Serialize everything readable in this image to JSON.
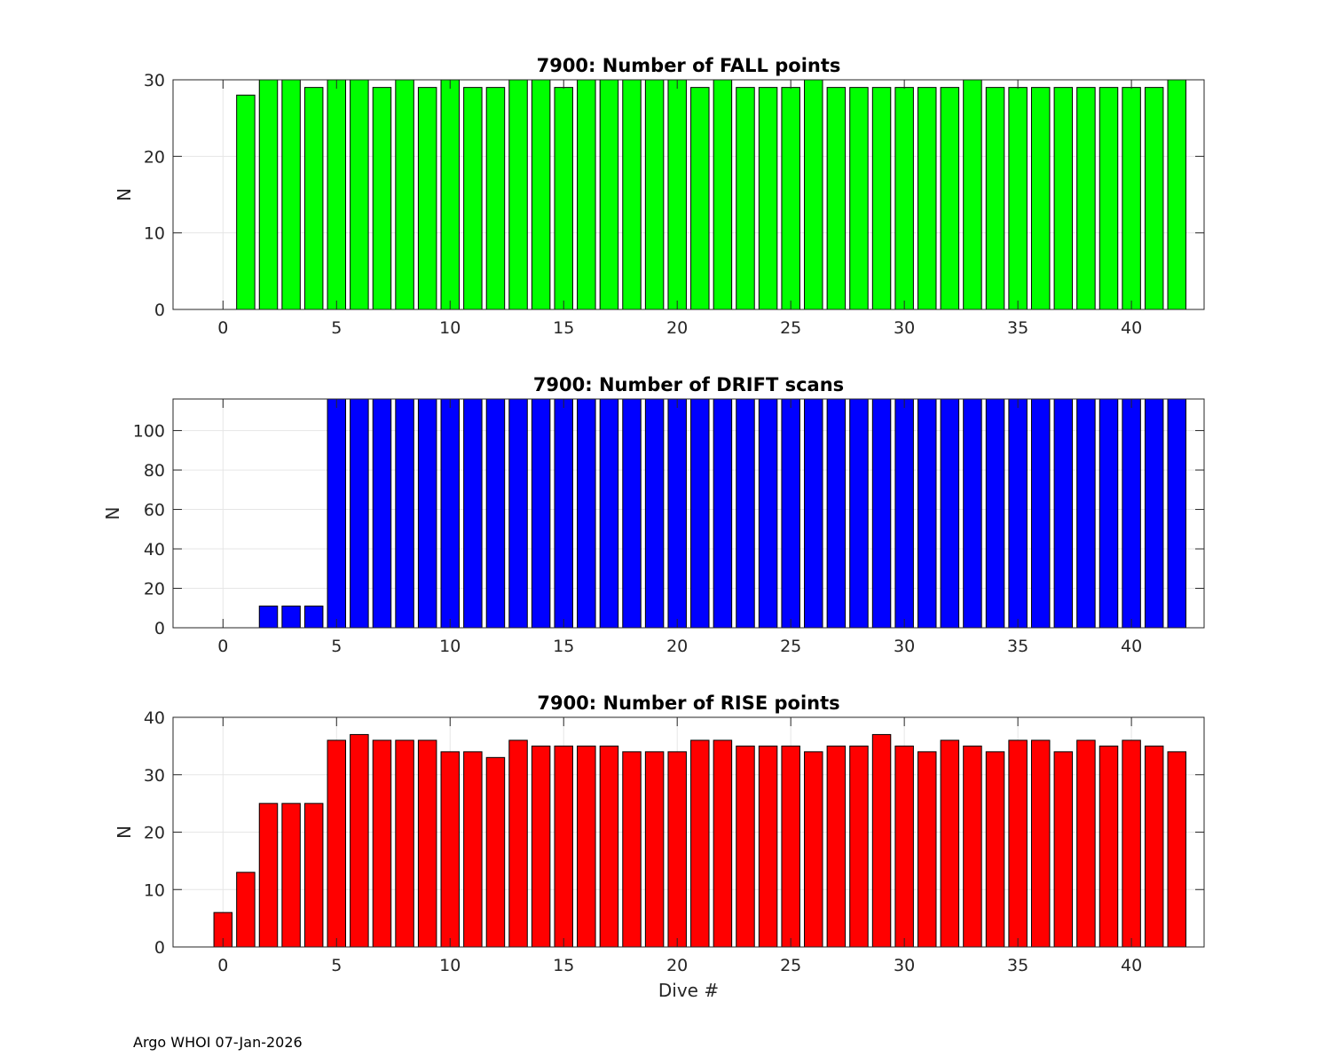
{
  "footer": "Argo WHOI 07-Jan-2026",
  "chart_data": [
    {
      "type": "bar",
      "title": "7900: Number of FALL points",
      "xlabel": "",
      "ylabel": "N",
      "xlim": [
        -2.2,
        43.2
      ],
      "ylim": [
        0,
        30
      ],
      "xticks": [
        0,
        5,
        10,
        15,
        20,
        25,
        30,
        35,
        40
      ],
      "yticks": [
        0,
        10,
        20,
        30
      ],
      "grid": true,
      "bar_color": "#00ff00",
      "x": [
        1,
        2,
        3,
        4,
        5,
        6,
        7,
        8,
        9,
        10,
        11,
        12,
        13,
        14,
        15,
        16,
        17,
        18,
        19,
        20,
        21,
        22,
        23,
        24,
        25,
        26,
        27,
        28,
        29,
        30,
        31,
        32,
        33,
        34,
        35,
        36,
        37,
        38,
        39,
        40,
        41,
        42
      ],
      "values": [
        28,
        30,
        30,
        29,
        30,
        30,
        29,
        30,
        29,
        30,
        29,
        29,
        30,
        30,
        29,
        30,
        30,
        30,
        30,
        30,
        29,
        30,
        29,
        29,
        29,
        30,
        29,
        29,
        29,
        29,
        29,
        29,
        30,
        29,
        29,
        29,
        29,
        29,
        29,
        29,
        29,
        30
      ]
    },
    {
      "type": "bar",
      "title": "7900: Number of DRIFT scans",
      "xlabel": "",
      "ylabel": "N",
      "xlim": [
        -2.2,
        43.2
      ],
      "ylim": [
        0,
        116
      ],
      "xticks": [
        0,
        5,
        10,
        15,
        20,
        25,
        30,
        35,
        40
      ],
      "yticks": [
        0,
        20,
        40,
        60,
        80,
        100
      ],
      "grid": true,
      "bar_color": "#0000ff",
      "x": [
        -1,
        0,
        1,
        2,
        3,
        4,
        5,
        6,
        7,
        8,
        9,
        10,
        11,
        12,
        13,
        14,
        15,
        16,
        17,
        18,
        19,
        20,
        21,
        22,
        23,
        24,
        25,
        26,
        27,
        28,
        29,
        30,
        31,
        32,
        33,
        34,
        35,
        36,
        37,
        38,
        39,
        40,
        41,
        42
      ],
      "values": [
        0,
        0,
        0,
        11,
        11,
        11,
        120,
        120,
        120,
        120,
        120,
        120,
        120,
        120,
        120,
        120,
        120,
        120,
        120,
        120,
        120,
        120,
        120,
        120,
        120,
        120,
        120,
        120,
        120,
        120,
        120,
        120,
        120,
        120,
        120,
        120,
        120,
        120,
        120,
        120,
        120,
        120,
        120,
        120
      ]
    },
    {
      "type": "bar",
      "title": "7900: Number of RISE points",
      "xlabel": "Dive #",
      "ylabel": "N",
      "xlim": [
        -2.2,
        43.2
      ],
      "ylim": [
        0,
        40
      ],
      "xticks": [
        0,
        5,
        10,
        15,
        20,
        25,
        30,
        35,
        40
      ],
      "yticks": [
        0,
        10,
        20,
        30,
        40
      ],
      "grid": true,
      "bar_color": "#ff0000",
      "x": [
        0,
        1,
        2,
        3,
        4,
        5,
        6,
        7,
        8,
        9,
        10,
        11,
        12,
        13,
        14,
        15,
        16,
        17,
        18,
        19,
        20,
        21,
        22,
        23,
        24,
        25,
        26,
        27,
        28,
        29,
        30,
        31,
        32,
        33,
        34,
        35,
        36,
        37,
        38,
        39,
        40,
        41,
        42
      ],
      "values": [
        6,
        13,
        25,
        25,
        25,
        36,
        37,
        36,
        36,
        36,
        34,
        34,
        33,
        36,
        35,
        35,
        35,
        35,
        34,
        34,
        34,
        36,
        36,
        35,
        35,
        35,
        34,
        35,
        35,
        37,
        35,
        34,
        36,
        35,
        34,
        36,
        36,
        34,
        36,
        35,
        36,
        35,
        34
      ]
    }
  ]
}
